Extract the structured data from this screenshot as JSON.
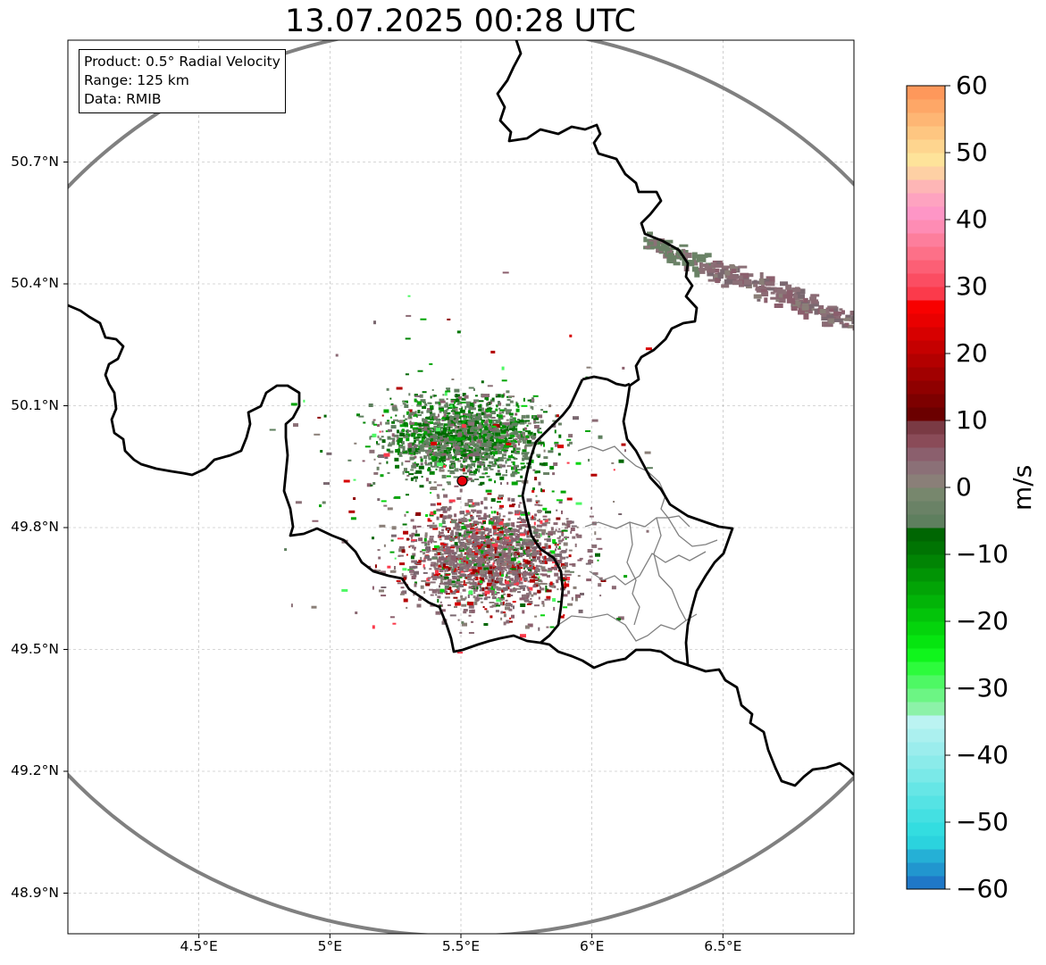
{
  "title": "13.07.2025 00:28 UTC",
  "info": {
    "product": "Product: 0.5° Radial Velocity",
    "range": "Range: 125 km",
    "data": "Data: RMIB"
  },
  "axes": {
    "lon_ticks": [
      {
        "value": 4.5,
        "label": "4.5°E"
      },
      {
        "value": 5.0,
        "label": "5°E"
      },
      {
        "value": 5.5,
        "label": "5.5°E"
      },
      {
        "value": 6.0,
        "label": "6°E"
      },
      {
        "value": 6.5,
        "label": "6.5°E"
      }
    ],
    "lat_ticks": [
      {
        "value": 50.7,
        "label": "50.7°N"
      },
      {
        "value": 50.4,
        "label": "50.4°N"
      },
      {
        "value": 50.1,
        "label": "50.1°N"
      },
      {
        "value": 49.8,
        "label": "49.8°N"
      },
      {
        "value": 49.5,
        "label": "49.5°N"
      },
      {
        "value": 49.2,
        "label": "49.2°N"
      },
      {
        "value": 48.9,
        "label": "48.9°N"
      }
    ],
    "lon_range": [
      4.0,
      7.0
    ],
    "lat_range": [
      48.8,
      51.0
    ],
    "grid": true
  },
  "radar": {
    "lon": 5.505,
    "lat": 49.915,
    "marker_color": "#e8000b"
  },
  "colorbar": {
    "label": "m/s",
    "min": -60,
    "max": 60,
    "ticks": [
      {
        "value": 60,
        "label": "60"
      },
      {
        "value": 50,
        "label": "50"
      },
      {
        "value": 40,
        "label": "40"
      },
      {
        "value": 30,
        "label": "30"
      },
      {
        "value": 20,
        "label": "20"
      },
      {
        "value": 10,
        "label": "10"
      },
      {
        "value": 0,
        "label": "0"
      },
      {
        "value": -10,
        "label": "−10"
      },
      {
        "value": -20,
        "label": "−20"
      },
      {
        "value": -30,
        "label": "−30"
      },
      {
        "value": -40,
        "label": "−40"
      },
      {
        "value": -50,
        "label": "−50"
      },
      {
        "value": -60,
        "label": "−60"
      }
    ],
    "stops": [
      {
        "from": -60,
        "to": -58,
        "color": "#1f78c8"
      },
      {
        "from": -58,
        "to": -56,
        "color": "#2196cf"
      },
      {
        "from": -56,
        "to": -54,
        "color": "#25b0d6"
      },
      {
        "from": -54,
        "to": -52,
        "color": "#2bd3de"
      },
      {
        "from": -52,
        "to": -50,
        "color": "#33dde0"
      },
      {
        "from": -50,
        "to": -48,
        "color": "#44e0e2"
      },
      {
        "from": -48,
        "to": -46,
        "color": "#55e3e4"
      },
      {
        "from": -46,
        "to": -44,
        "color": "#66e6e6"
      },
      {
        "from": -44,
        "to": -42,
        "color": "#7ae9e8"
      },
      {
        "from": -42,
        "to": -40,
        "color": "#8bebea"
      },
      {
        "from": -40,
        "to": -38,
        "color": "#9beded"
      },
      {
        "from": -38,
        "to": -36,
        "color": "#abf0ef"
      },
      {
        "from": -36,
        "to": -34,
        "color": "#bbf3f2"
      },
      {
        "from": -34,
        "to": -32,
        "color": "#8cf2a8"
      },
      {
        "from": -32,
        "to": -30,
        "color": "#6cf584"
      },
      {
        "from": -30,
        "to": -28,
        "color": "#4ef864"
      },
      {
        "from": -28,
        "to": -26,
        "color": "#2dfb3c"
      },
      {
        "from": -26,
        "to": -24,
        "color": "#10f51c"
      },
      {
        "from": -24,
        "to": -22,
        "color": "#06e510"
      },
      {
        "from": -22,
        "to": -20,
        "color": "#04d40c"
      },
      {
        "from": -20,
        "to": -18,
        "color": "#03c40a"
      },
      {
        "from": -18,
        "to": -16,
        "color": "#02b408"
      },
      {
        "from": -16,
        "to": -14,
        "color": "#02a406"
      },
      {
        "from": -14,
        "to": -12,
        "color": "#019405"
      },
      {
        "from": -12,
        "to": -10,
        "color": "#018404"
      },
      {
        "from": -10,
        "to": -8,
        "color": "#007403"
      },
      {
        "from": -8,
        "to": -6,
        "color": "#006602"
      },
      {
        "from": -6,
        "to": -4,
        "color": "#5e7f5e"
      },
      {
        "from": -4,
        "to": -2,
        "color": "#6a8266"
      },
      {
        "from": -2,
        "to": 0,
        "color": "#77876d"
      },
      {
        "from": 0,
        "to": 2,
        "color": "#8a7f78"
      },
      {
        "from": 2,
        "to": 4,
        "color": "#8b7077"
      },
      {
        "from": 4,
        "to": 6,
        "color": "#8b5f6d"
      },
      {
        "from": 6,
        "to": 8,
        "color": "#8a4b58"
      },
      {
        "from": 8,
        "to": 10,
        "color": "#7a3a44"
      },
      {
        "from": 10,
        "to": 12,
        "color": "#6b0000"
      },
      {
        "from": 12,
        "to": 14,
        "color": "#7d0000"
      },
      {
        "from": 14,
        "to": 16,
        "color": "#8f0000"
      },
      {
        "from": 16,
        "to": 18,
        "color": "#a10000"
      },
      {
        "from": 18,
        "to": 20,
        "color": "#b30000"
      },
      {
        "from": 20,
        "to": 22,
        "color": "#c50000"
      },
      {
        "from": 22,
        "to": 24,
        "color": "#d70000"
      },
      {
        "from": 24,
        "to": 26,
        "color": "#e90000"
      },
      {
        "from": 26,
        "to": 28,
        "color": "#f80000"
      },
      {
        "from": 28,
        "to": 30,
        "color": "#fb3a4b"
      },
      {
        "from": 30,
        "to": 32,
        "color": "#fb4d62"
      },
      {
        "from": 32,
        "to": 34,
        "color": "#fc5f75"
      },
      {
        "from": 34,
        "to": 36,
        "color": "#fd7088"
      },
      {
        "from": 36,
        "to": 38,
        "color": "#fd7e9c"
      },
      {
        "from": 38,
        "to": 40,
        "color": "#fe8cb4"
      },
      {
        "from": 40,
        "to": 42,
        "color": "#fe96c6"
      },
      {
        "from": 42,
        "to": 44,
        "color": "#fea3c0"
      },
      {
        "from": 44,
        "to": 46,
        "color": "#feb6b6"
      },
      {
        "from": 46,
        "to": 48,
        "color": "#fed0a4"
      },
      {
        "from": 48,
        "to": 50,
        "color": "#fee39a"
      },
      {
        "from": 50,
        "to": 52,
        "color": "#fed58f"
      },
      {
        "from": 52,
        "to": 54,
        "color": "#fec681"
      },
      {
        "from": 54,
        "to": 56,
        "color": "#feb674"
      },
      {
        "from": 56,
        "to": 58,
        "color": "#fea767"
      },
      {
        "from": 58,
        "to": 60,
        "color": "#fe985b"
      }
    ]
  },
  "colors": {
    "border": "#000000",
    "admin": "#808080",
    "range_ring": "#808080",
    "grid": "#b0b0b0"
  }
}
